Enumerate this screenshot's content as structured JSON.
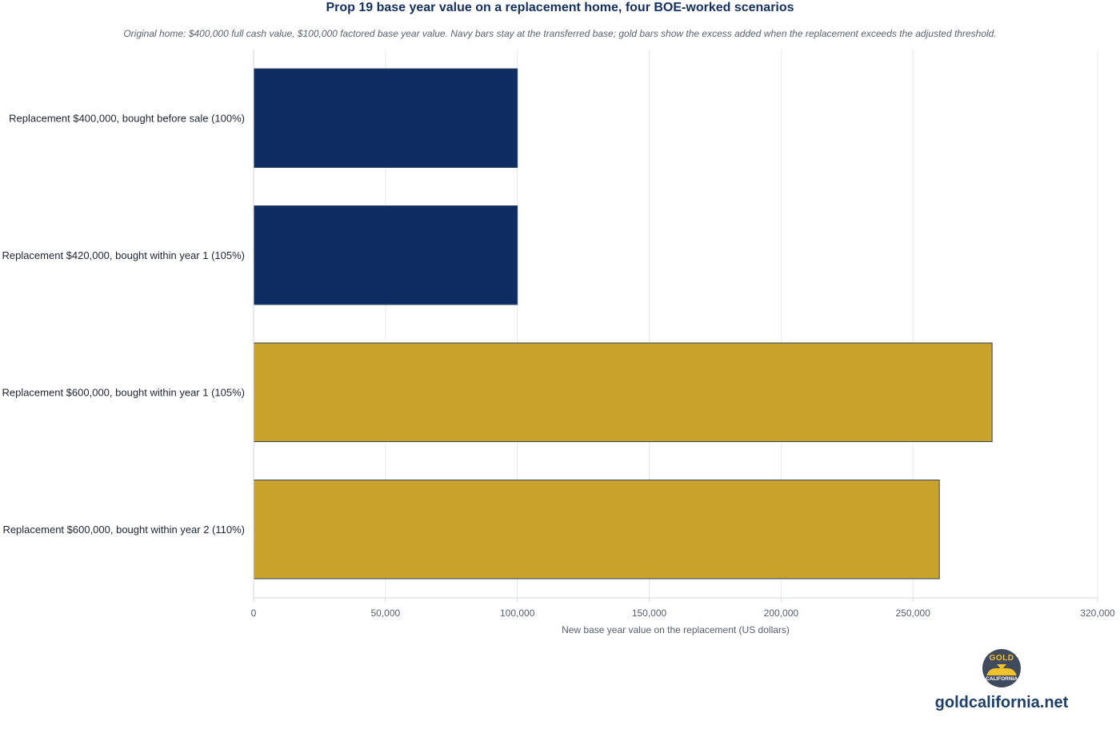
{
  "header": {
    "title": "Prop 19 base year value on a replacement home, four BOE-worked scenarios",
    "subtitle": "Original home: $400,000 full cash value, $100,000 factored base year value. Navy bars stay at the transferred base; gold bars show the excess added when the replacement exceeds the adjusted threshold."
  },
  "chart_data": {
    "type": "bar",
    "orientation": "horizontal",
    "title": "Prop 19 base year value on a replacement home, four BOE-worked scenarios",
    "subtitle": "Original home: $400,000 full cash value, $100,000 factored base year value. Navy bars stay at the transferred base; gold bars show the excess added when the replacement exceeds the adjusted threshold.",
    "categories": [
      "Replacement $400,000, bought before sale (100%)",
      "Replacement $420,000, bought within year 1 (105%)",
      "Replacement $600,000, bought within year 1 (105%)",
      "Replacement $600,000, bought within year 2 (110%)"
    ],
    "values": [
      100000,
      100000,
      280000,
      260000
    ],
    "bar_colors": [
      "#0d2d62",
      "#0d2d62",
      "#c9a22b",
      "#c9a22b"
    ],
    "xlabel": "New base year value on the replacement (US dollars)",
    "ylabel": "",
    "xlim": [
      0,
      320000
    ],
    "x_ticks": [
      0,
      50000,
      100000,
      150000,
      200000,
      250000,
      320000
    ],
    "x_tick_labels": [
      "0",
      "50,000",
      "100,000",
      "150,000",
      "200,000",
      "250,000",
      "320,000"
    ],
    "grid": "vertical",
    "legend": "none"
  },
  "colors": {
    "navy": "#0d2d62",
    "gold": "#c9a22b",
    "bar_outline": "#33465f",
    "grid": "#e6e8ec",
    "title": "#14305e"
  },
  "brand": {
    "logo_top": "GOLD",
    "logo_bottom": "CALIFORNIA",
    "logo_icon": "gold-california-logo-icon",
    "url": "goldcalifornia.net"
  }
}
